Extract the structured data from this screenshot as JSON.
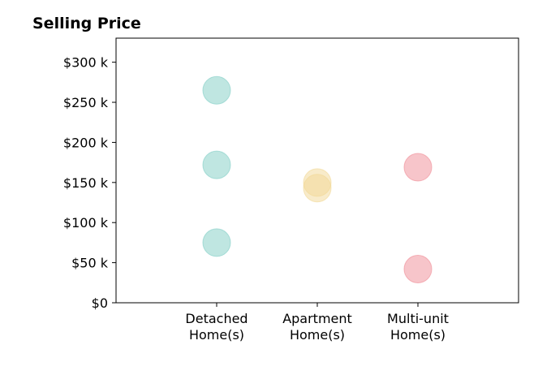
{
  "chart_data": {
    "type": "scatter",
    "title": "Selling Price",
    "xlabel": "",
    "ylabel": "",
    "categories": [
      [
        "Detached",
        "Home(s)"
      ],
      [
        "Apartment",
        "Home(s)"
      ],
      [
        "Multi-unit",
        "Home(s)"
      ]
    ],
    "xlim": [
      -1,
      3
    ],
    "ylim": [
      0,
      330000
    ],
    "yticks": [
      0,
      50000,
      100000,
      150000,
      200000,
      250000,
      300000
    ],
    "ytick_labels": [
      "$0",
      "$50 k",
      "$100 k",
      "$150 k",
      "$200 k",
      "$250 k",
      "$300 k"
    ],
    "grid": false,
    "series": [
      {
        "category_index": 0,
        "color": "#7fcdc4",
        "values": [
          265000,
          172000,
          75000
        ]
      },
      {
        "category_index": 1,
        "color": "#f2d896",
        "values": [
          150000,
          143000
        ]
      },
      {
        "category_index": 2,
        "color": "#f08c96",
        "values": [
          169000,
          42000
        ]
      }
    ]
  }
}
